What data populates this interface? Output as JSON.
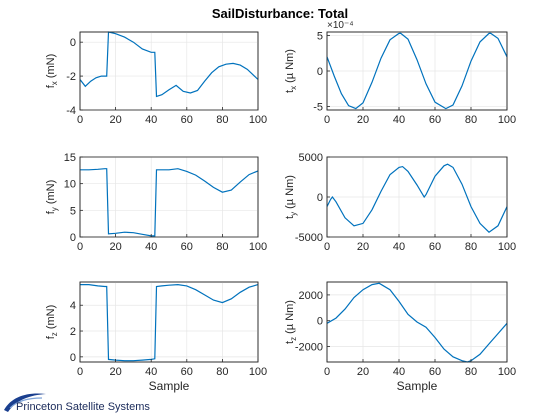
{
  "figure": {
    "title": "SailDisturbance: Total",
    "footer_text": "Princeton Satellite Systems",
    "series_color": "#0072bd"
  },
  "chart_data": [
    {
      "id": "fx",
      "type": "line",
      "ylabel_main": "f",
      "ylabel_sub": "x",
      "ylabel_unit": " (mN)",
      "xlabel": "",
      "xlim": [
        0,
        100
      ],
      "ylim": [
        -4,
        0.6
      ],
      "xticks": [
        0,
        20,
        40,
        60,
        80,
        100
      ],
      "yticks": [
        -4,
        -2,
        0
      ],
      "x": [
        0,
        3,
        6,
        9,
        12,
        15,
        16,
        20,
        25,
        30,
        35,
        40,
        42,
        43,
        46,
        50,
        54,
        58,
        62,
        66,
        70,
        74,
        78,
        82,
        86,
        90,
        94,
        98,
        100
      ],
      "y": [
        -2.2,
        -2.6,
        -2.3,
        -2.1,
        -2.0,
        -2.0,
        0.6,
        0.5,
        0.3,
        0.0,
        -0.4,
        -0.6,
        -0.6,
        -3.2,
        -3.1,
        -2.8,
        -2.55,
        -2.9,
        -3.0,
        -2.85,
        -2.3,
        -1.8,
        -1.45,
        -1.3,
        -1.25,
        -1.35,
        -1.6,
        -2.0,
        -2.2
      ]
    },
    {
      "id": "tx",
      "type": "line",
      "ylabel_main": "t",
      "ylabel_sub": "x",
      "ylabel_unit": " (µ Nm)",
      "xlabel": "",
      "exponent_label": "×10⁻⁴",
      "xlim": [
        0,
        100
      ],
      "ylim": [
        -5.5,
        5.5
      ],
      "xticks": [
        0,
        20,
        40,
        60,
        80,
        100
      ],
      "yticks": [
        -5,
        0,
        5
      ],
      "x": [
        0,
        4,
        8,
        12,
        16,
        20,
        25,
        30,
        35,
        40,
        41,
        45,
        50,
        55,
        60,
        66,
        70,
        75,
        80,
        85,
        90,
        91,
        95,
        100
      ],
      "y": [
        2.0,
        -0.7,
        -3.2,
        -4.9,
        -5.3,
        -4.5,
        -1.6,
        1.8,
        4.4,
        5.3,
        5.3,
        4.5,
        1.6,
        -1.8,
        -4.4,
        -5.3,
        -4.8,
        -2.1,
        1.4,
        4.1,
        5.3,
        5.3,
        4.6,
        2.0
      ]
    },
    {
      "id": "fy",
      "type": "line",
      "ylabel_main": "f",
      "ylabel_sub": "y",
      "ylabel_unit": " (mN)",
      "xlabel": "",
      "xlim": [
        0,
        100
      ],
      "ylim": [
        0,
        15
      ],
      "xticks": [
        0,
        20,
        40,
        60,
        80,
        100
      ],
      "yticks": [
        0,
        5,
        10,
        15
      ],
      "x": [
        0,
        5,
        10,
        14,
        15,
        16,
        20,
        25,
        30,
        35,
        40,
        42,
        43,
        46,
        50,
        55,
        60,
        65,
        70,
        75,
        80,
        85,
        90,
        95,
        100
      ],
      "y": [
        12.6,
        12.6,
        12.7,
        12.8,
        12.8,
        0.6,
        0.7,
        0.9,
        0.8,
        0.5,
        0.2,
        0.2,
        12.6,
        12.6,
        12.6,
        12.8,
        12.3,
        11.6,
        10.5,
        9.3,
        8.4,
        8.8,
        10.3,
        11.7,
        12.4
      ]
    },
    {
      "id": "ty",
      "type": "line",
      "ylabel_main": "t",
      "ylabel_sub": "y",
      "ylabel_unit": " (µ Nm)",
      "xlabel": "",
      "xlim": [
        0,
        100
      ],
      "ylim": [
        -5000,
        5000
      ],
      "xticks": [
        0,
        20,
        40,
        60,
        80,
        100
      ],
      "yticks": [
        -5000,
        0,
        5000
      ],
      "x": [
        0,
        2,
        3,
        5,
        10,
        15,
        20,
        25,
        30,
        35,
        40,
        42,
        45,
        50,
        54,
        55,
        60,
        65,
        67,
        70,
        75,
        80,
        85,
        90,
        95,
        100
      ],
      "y": [
        -1200,
        -300,
        0,
        -600,
        -2600,
        -3600,
        -3300,
        -1600,
        700,
        2800,
        3700,
        3800,
        3200,
        1500,
        0,
        300,
        2600,
        3900,
        4100,
        3700,
        1600,
        -1200,
        -3300,
        -4400,
        -3600,
        -1200
      ]
    },
    {
      "id": "fz",
      "type": "line",
      "ylabel_main": "f",
      "ylabel_sub": "z",
      "ylabel_unit": " (mN)",
      "xlabel": "Sample",
      "xlim": [
        0,
        100
      ],
      "ylim": [
        -0.4,
        5.8
      ],
      "xticks": [
        0,
        20,
        40,
        60,
        80,
        100
      ],
      "yticks": [
        0,
        2,
        4
      ],
      "x": [
        0,
        5,
        10,
        14,
        15,
        16,
        20,
        25,
        30,
        35,
        40,
        42,
        43,
        46,
        50,
        55,
        60,
        65,
        70,
        75,
        80,
        85,
        90,
        95,
        100
      ],
      "y": [
        5.6,
        5.6,
        5.5,
        5.45,
        5.45,
        -0.2,
        -0.25,
        -0.3,
        -0.3,
        -0.25,
        -0.2,
        -0.15,
        5.45,
        5.5,
        5.55,
        5.6,
        5.5,
        5.2,
        4.8,
        4.4,
        4.2,
        4.5,
        5.0,
        5.4,
        5.6
      ]
    },
    {
      "id": "tz",
      "type": "line",
      "ylabel_main": "t",
      "ylabel_sub": "z",
      "ylabel_unit": " (µ Nm)",
      "xlabel": "Sample",
      "xlim": [
        0,
        100
      ],
      "ylim": [
        -3200,
        3000
      ],
      "xticks": [
        0,
        20,
        40,
        60,
        80,
        100
      ],
      "yticks": [
        -2000,
        0,
        2000
      ],
      "x": [
        0,
        5,
        10,
        15,
        20,
        25,
        29,
        35,
        40,
        45,
        50,
        55,
        60,
        65,
        70,
        75,
        78,
        80,
        85,
        90,
        95,
        100
      ],
      "y": [
        -200,
        200,
        900,
        1800,
        2400,
        2800,
        2900,
        2400,
        1500,
        500,
        -100,
        -500,
        -1300,
        -2200,
        -2800,
        -3100,
        -3200,
        -3100,
        -2600,
        -1800,
        -1000,
        -200
      ]
    }
  ]
}
